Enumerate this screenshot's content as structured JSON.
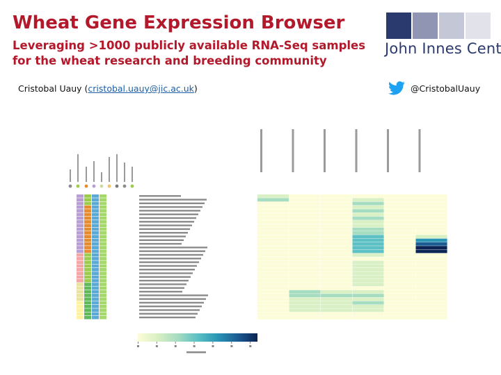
{
  "header": {
    "title": "Wheat Gene Expression Browser",
    "subtitle": "Leveraging >1000 publicly available RNA-Seq samples for the wheat research and breeding community"
  },
  "author": {
    "prefix": "Cristobal Uauy (",
    "email": "cristobal.uauy@jic.ac.uk",
    "suffix": ")"
  },
  "logo": {
    "text": "John Innes Centre",
    "block_colors": [
      "#2a3a6e",
      "#8f95b3",
      "#c4c7d6",
      "#e1e2ea"
    ]
  },
  "twitter": {
    "icon": "twitter-bird-icon",
    "handle": "@CristobalUauy",
    "color": "#1da1f2"
  },
  "heatmap": {
    "legend_colors": [
      "#8c8c8c",
      "#9ccc4c",
      "#e88b2e",
      "#b79fd4",
      "#cdd9a3",
      "#f5c26b",
      "#7a7a7a"
    ],
    "scale_colors": [
      "#fcfdd8",
      "#d9efc4",
      "#a6dcc0",
      "#5cc0c4",
      "#2a95b6",
      "#1b5c93",
      "#0b2453"
    ]
  }
}
